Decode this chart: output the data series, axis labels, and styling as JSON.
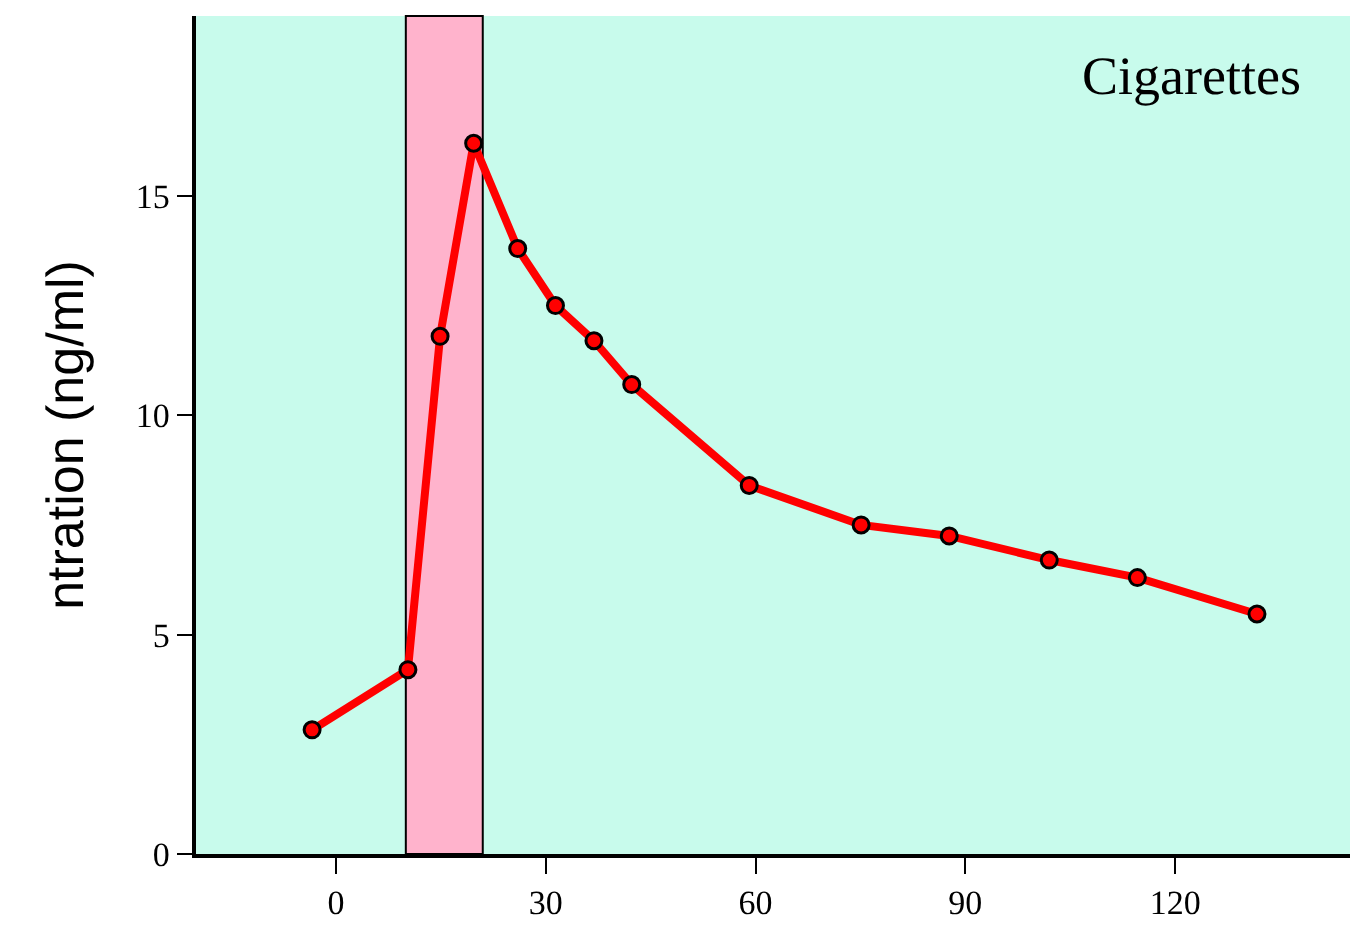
{
  "chart_data": {
    "type": "line",
    "ylabel": "ntration (ng/ml)",
    "annotations": [
      "Cigarettes"
    ],
    "x": [
      -3.4,
      10.3,
      14.9,
      19.7,
      26,
      31.4,
      36.9,
      42.3,
      59.1,
      75.1,
      87.7,
      102,
      114.6,
      131.7
    ],
    "series": [
      {
        "color": "#ff0000",
        "values": [
          2.83,
          4.2,
          11.8,
          16.2,
          13.8,
          12.5,
          11.7,
          10.7,
          8.4,
          7.5,
          7.25,
          6.7,
          6.3,
          5.47
        ]
      }
    ],
    "xlim": [
      -20,
      145
    ],
    "xticks": [
      0,
      30,
      60,
      90,
      120
    ],
    "ylim": [
      0,
      19.1
    ],
    "yticks": [
      0,
      5,
      10,
      15
    ],
    "bands": [
      {
        "axis": "x",
        "from": 10,
        "to": 21,
        "color": "#ffb3cc"
      }
    ],
    "marker": "circle",
    "line_style": "solid"
  }
}
